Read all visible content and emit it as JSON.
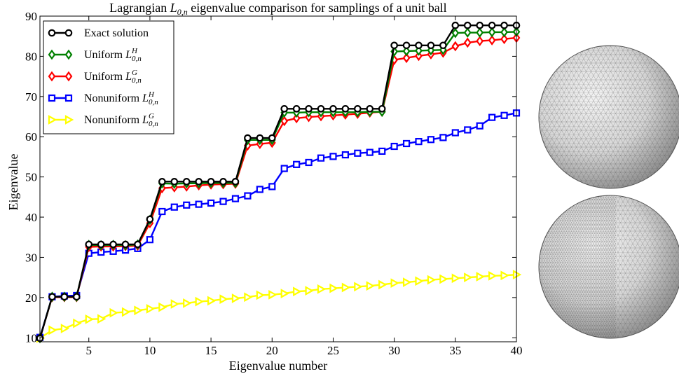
{
  "chart_data": {
    "type": "line",
    "title_pre": "Lagrangian ",
    "title_sym": "L",
    "title_sub": "0,n",
    "title_post": " eigenvalue comparison for samplings of a unit ball",
    "xlabel": "Eigenvalue number",
    "ylabel": "Eigenvalue",
    "xlim": [
      1,
      40
    ],
    "ylim": [
      9,
      90
    ],
    "xticks": [
      5,
      10,
      15,
      20,
      25,
      30,
      35,
      40
    ],
    "yticks": [
      10,
      20,
      30,
      40,
      50,
      60,
      70,
      80,
      90
    ],
    "grid": false,
    "legend_position": "top-left",
    "series": [
      {
        "name": "Exact solution",
        "legend_base": "Exact solution",
        "legend_sup": "",
        "legend_sub": "",
        "color": "#000000",
        "marker": "circle",
        "values": [
          9.87,
          20.19,
          20.19,
          20.19,
          33.22,
          33.22,
          33.22,
          33.22,
          33.22,
          39.48,
          48.83,
          48.83,
          48.83,
          48.83,
          48.83,
          48.83,
          48.83,
          59.68,
          59.68,
          59.68,
          66.95,
          66.95,
          66.95,
          66.95,
          66.95,
          66.95,
          66.95,
          66.95,
          66.95,
          82.72,
          82.72,
          82.72,
          82.72,
          82.72,
          87.7,
          87.7,
          87.7,
          87.7,
          87.7,
          87.7
        ]
      },
      {
        "name": "Uniform L0,nH",
        "legend_base": "Uniform L",
        "legend_sup": "H",
        "legend_sub": "0,n",
        "color": "#008000",
        "marker": "diamond",
        "values": [
          9.9,
          20.2,
          20.2,
          20.2,
          33.1,
          33.0,
          33.1,
          33.0,
          33.2,
          39.3,
          48.4,
          48.3,
          48.4,
          48.4,
          48.5,
          48.5,
          48.5,
          59.2,
          59.2,
          59.2,
          66.0,
          66.0,
          66.1,
          66.1,
          66.1,
          66.1,
          66.1,
          66.2,
          66.2,
          81.2,
          81.3,
          81.4,
          81.5,
          81.6,
          85.8,
          85.9,
          85.9,
          86.0,
          86.0,
          86.1
        ]
      },
      {
        "name": "Uniform L0,nG",
        "legend_base": "Uniform L",
        "legend_sup": "G",
        "legend_sub": "0,n",
        "color": "#ff0000",
        "marker": "diamond",
        "values": [
          9.9,
          20.1,
          20.1,
          20.1,
          32.6,
          32.7,
          32.7,
          32.8,
          32.9,
          38.5,
          47.2,
          47.4,
          47.6,
          47.9,
          48.1,
          48.2,
          48.3,
          57.8,
          58.2,
          58.5,
          63.9,
          64.6,
          64.9,
          65.1,
          65.3,
          65.5,
          65.7,
          66.0,
          66.2,
          79.1,
          79.6,
          80.1,
          80.5,
          80.9,
          82.5,
          83.4,
          83.8,
          84.0,
          84.3,
          84.6
        ]
      },
      {
        "name": "Nonuniform L0,nH",
        "legend_base": "Nonuniform L",
        "legend_sup": "H",
        "legend_sub": "0,n",
        "color": "#0000ff",
        "marker": "square",
        "values": [
          10.1,
          20.2,
          20.4,
          20.5,
          31.0,
          31.3,
          31.5,
          31.8,
          32.2,
          34.4,
          41.4,
          42.5,
          43.0,
          43.2,
          43.5,
          43.9,
          44.6,
          45.3,
          46.9,
          47.6,
          52.1,
          53.1,
          53.6,
          54.7,
          55.1,
          55.5,
          55.9,
          56.1,
          56.4,
          57.6,
          58.3,
          58.8,
          59.3,
          59.8,
          61.0,
          61.7,
          62.7,
          64.8,
          65.3,
          65.9
        ]
      },
      {
        "name": "Nonuniform L0,nG",
        "legend_base": "Nonuniform L",
        "legend_sup": "G",
        "legend_sub": "0,n",
        "color": "#ffff00",
        "marker": "triangle-right",
        "values": [
          9.9,
          11.9,
          12.3,
          13.6,
          14.6,
          14.7,
          16.2,
          16.4,
          16.8,
          17.2,
          17.6,
          18.4,
          18.6,
          19.0,
          19.2,
          19.6,
          19.8,
          20.1,
          20.6,
          20.7,
          21.0,
          21.5,
          21.7,
          22.1,
          22.3,
          22.5,
          22.7,
          22.9,
          23.2,
          23.6,
          23.8,
          24.1,
          24.4,
          24.6,
          24.8,
          25.0,
          25.2,
          25.4,
          25.5,
          25.7
        ]
      }
    ]
  }
}
